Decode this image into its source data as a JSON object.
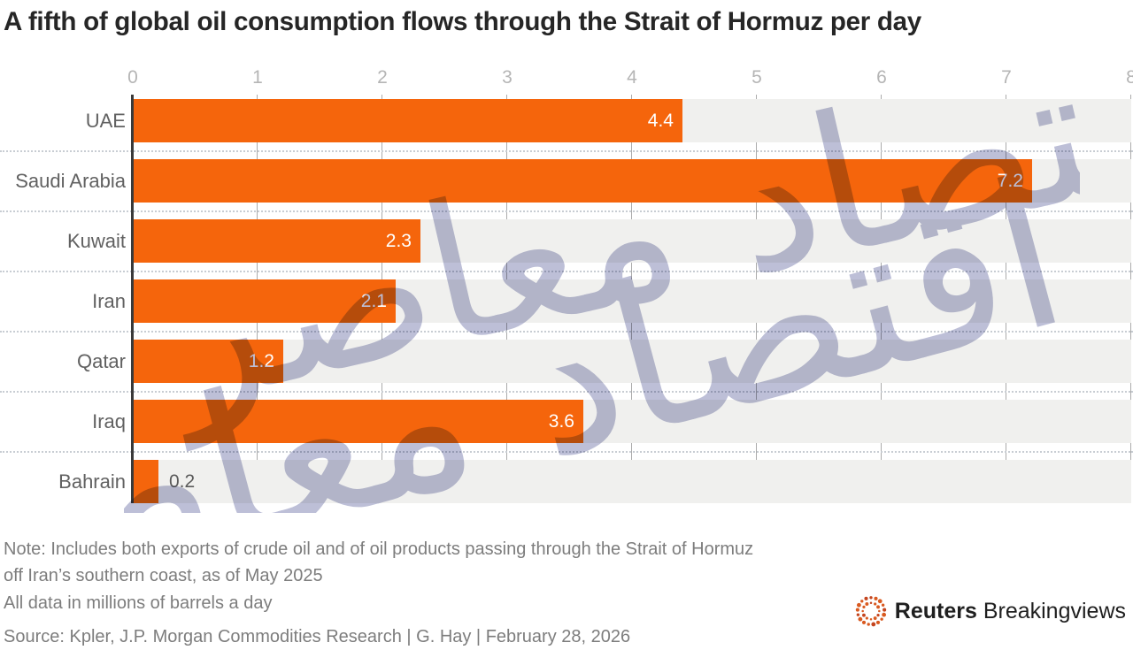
{
  "title": "A fifth of global oil consumption flows through the Strait of Hormuz per day",
  "chart_data": {
    "type": "bar",
    "orientation": "horizontal",
    "title": "A fifth of global oil consumption flows through the Strait of Hormuz per day",
    "categories": [
      "UAE",
      "Saudi Arabia",
      "Kuwait",
      "Iran",
      "Qatar",
      "Iraq",
      "Bahrain"
    ],
    "values": [
      4.4,
      7.2,
      2.3,
      2.1,
      1.2,
      3.6,
      0.2
    ],
    "x_ticks": [
      0,
      1,
      2,
      3,
      4,
      5,
      6,
      7,
      8
    ],
    "xlim": [
      0,
      8
    ],
    "xlabel": "",
    "ylabel": "",
    "unit": "millions of barrels a day",
    "grid": "vertical",
    "value_labels": "end of bar",
    "bar_color": "#f5650c",
    "row_band_color": "#f0f0ee"
  },
  "notes": {
    "line1": "Note: Includes both exports of crude oil and of oil products passing through the Strait of Hormuz",
    "line2": "off Iran’s southern coast, as of May 2025",
    "line3": "All data in millions of barrels a day"
  },
  "source": "Source: Kpler, J.P. Morgan Commodities Research | G. Hay | February 28, 2026",
  "branding": {
    "bold": "Reuters",
    "regular": "Breakingviews",
    "logo_color": "#d95a20"
  },
  "watermark": {
    "text": "اقتصاد معاصر",
    "color": "#b4b7d2"
  },
  "colors": {
    "bar": "#f5650c",
    "axis_line": "#3a3a3a",
    "gridline": "#ababab",
    "tick_label": "#b5b5b5",
    "category_label": "#616161",
    "value_in_bar": "#ffffff",
    "value_outside_bar": "#5a5a5a",
    "note_text": "#7d7d7d",
    "title_text": "#262626"
  }
}
